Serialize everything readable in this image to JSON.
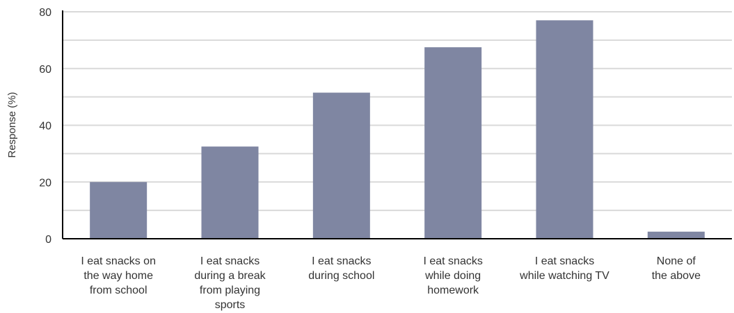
{
  "chart_data": {
    "type": "bar",
    "title": "",
    "xlabel": "",
    "ylabel": "Response (%)",
    "ylim": [
      0,
      80
    ],
    "yticks": [
      0,
      20,
      40,
      60,
      80
    ],
    "grid": true,
    "categories": [
      [
        "I eat snacks on",
        "the way home",
        "from school"
      ],
      [
        "I eat snacks",
        "during a break",
        "from playing",
        "sports"
      ],
      [
        "I eat snacks",
        "during school"
      ],
      [
        "I eat snacks",
        "while doing",
        "homework"
      ],
      [
        "I eat snacks",
        "while watching TV"
      ],
      [
        "None of",
        "the above"
      ]
    ],
    "values": [
      20,
      32.5,
      51.5,
      67.5,
      77,
      2.5
    ],
    "colors": {
      "bar": "#7f86a2",
      "grid": "#d9d9d9",
      "axis": "#000000"
    }
  }
}
